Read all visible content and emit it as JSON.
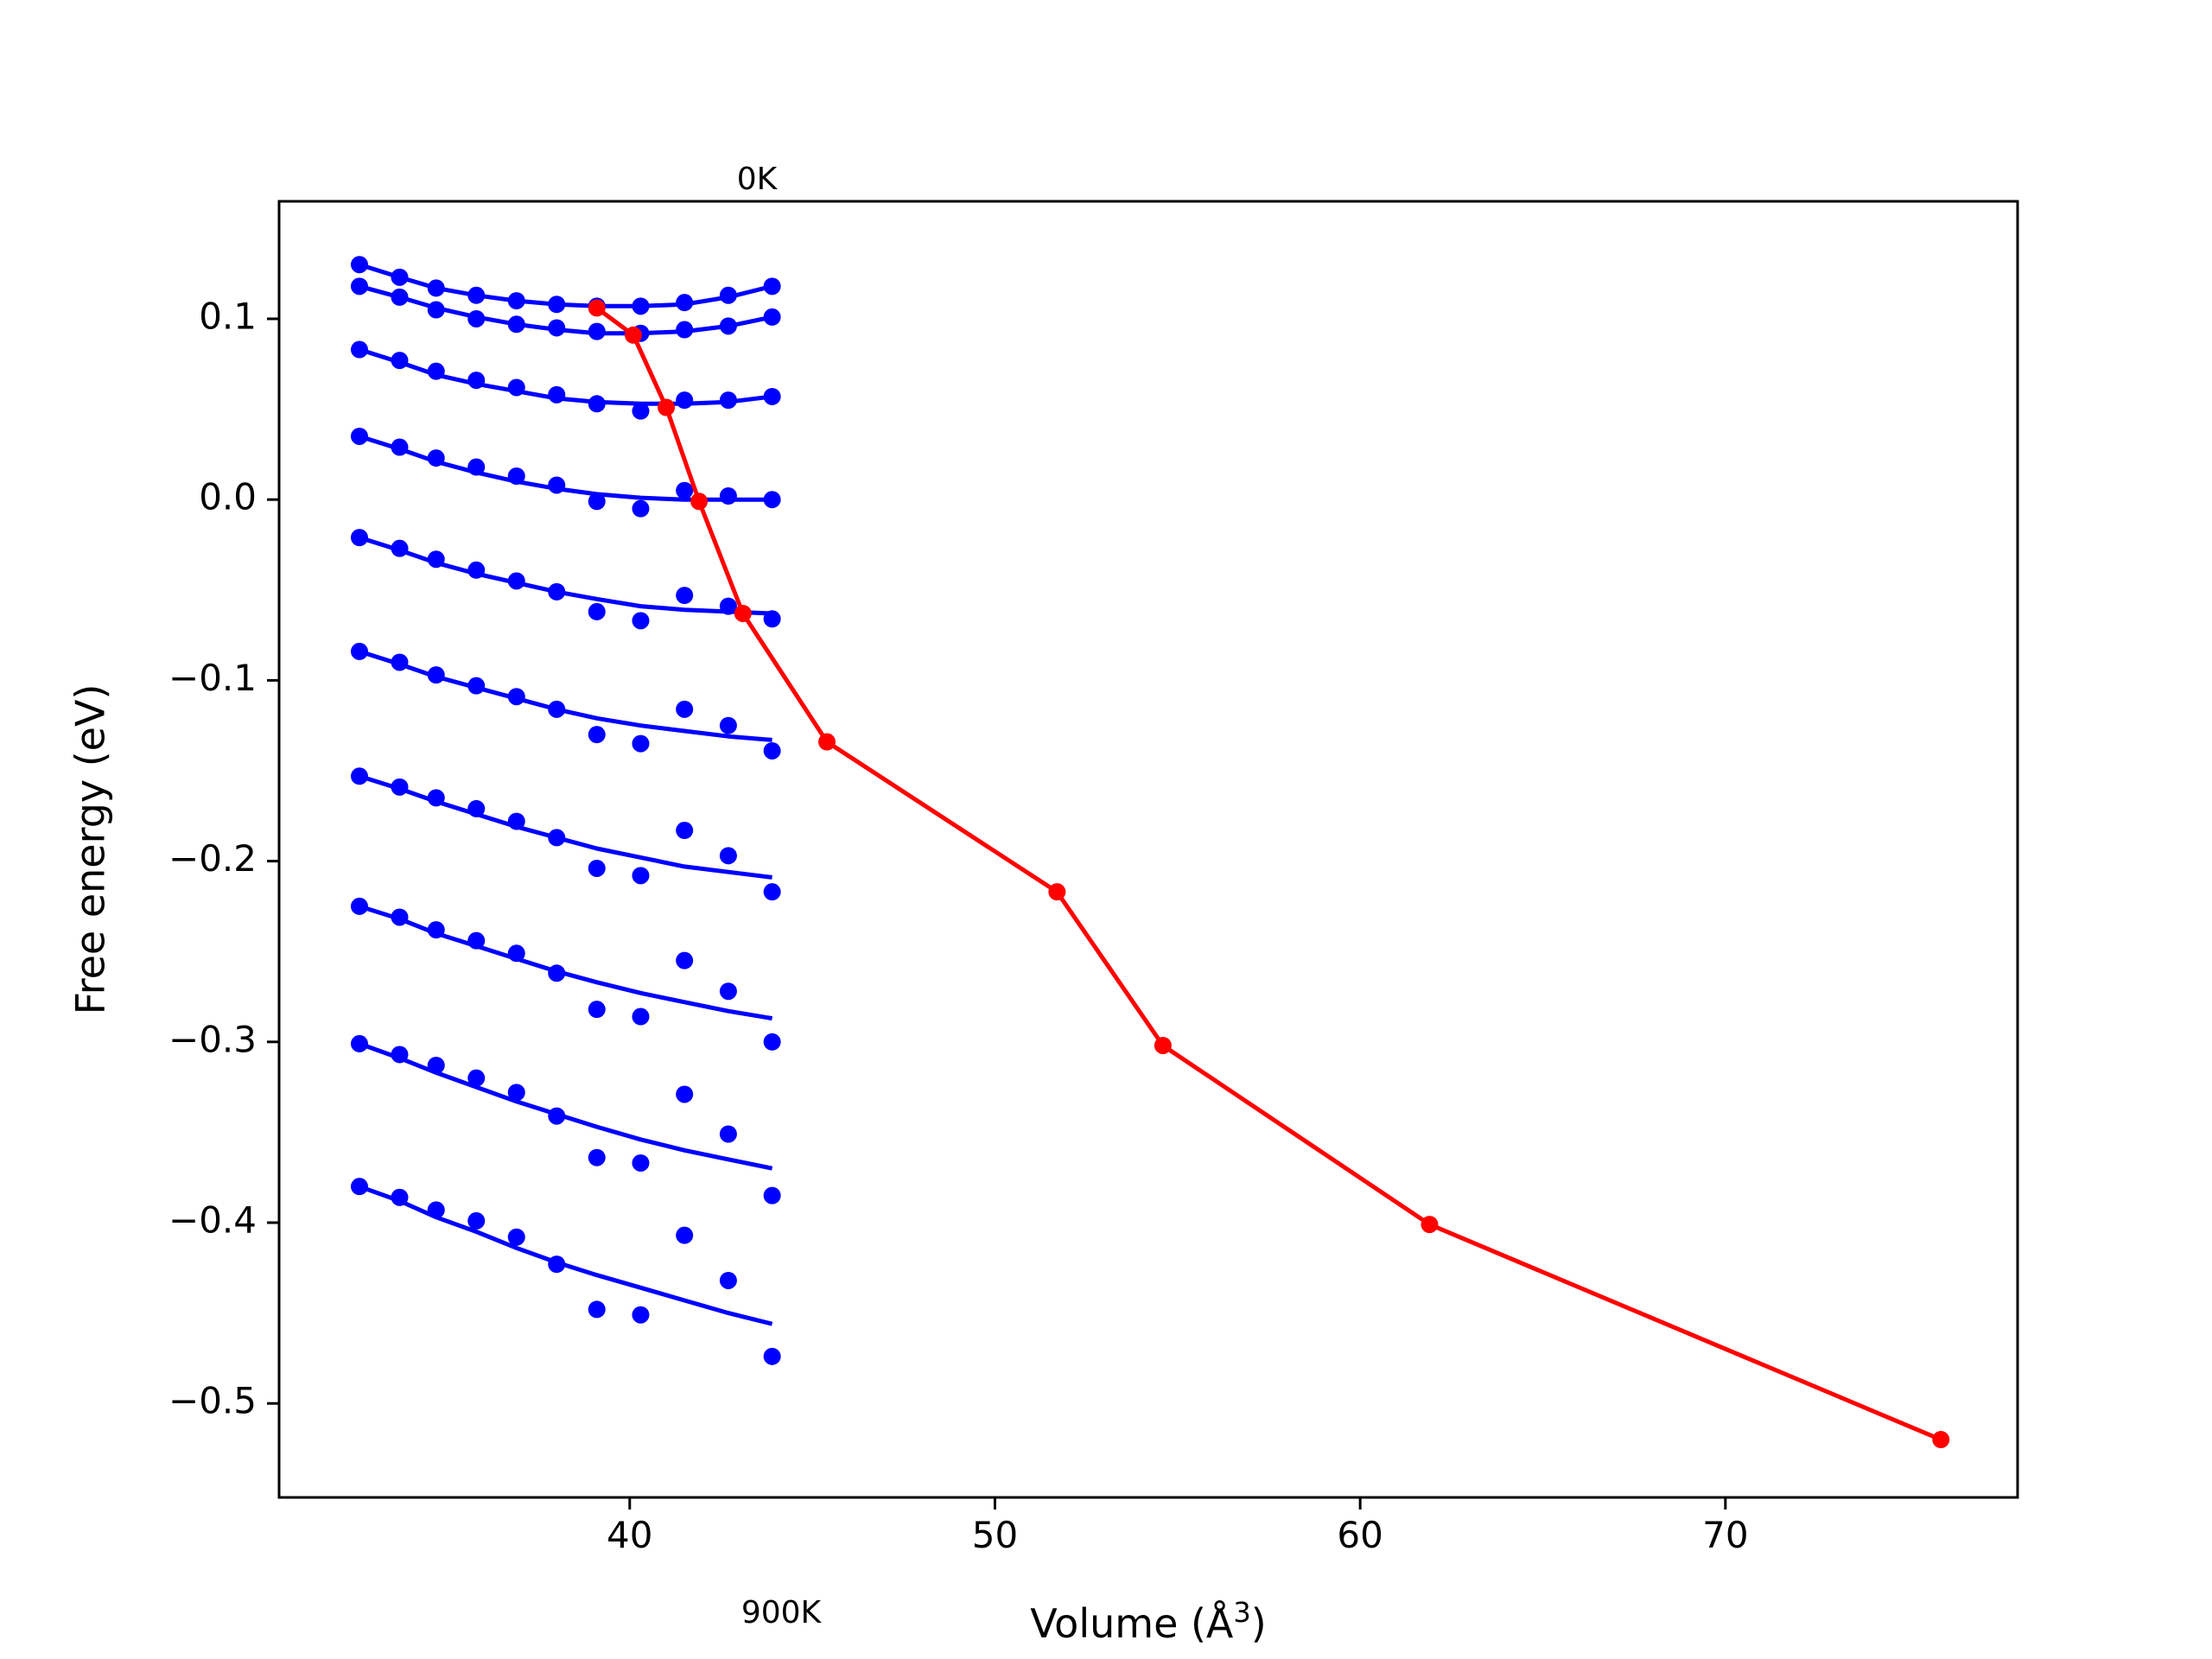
{
  "chart_data": {
    "type": "scatter",
    "title": "",
    "xlabel": "Volume (Å",
    "xlabel_sup": "3",
    "xlabel_close": ")",
    "ylabel": "Free energy (eV)",
    "xlim": [
      30.4,
      78.0
    ],
    "ylim": [
      -0.552,
      0.165
    ],
    "x_ticks": [
      40,
      50,
      60,
      70
    ],
    "y_ticks": [
      0.1,
      0.0,
      -0.1,
      -0.2,
      -0.3,
      -0.4,
      -0.5
    ],
    "y_tick_labels": [
      "0.1",
      "0.0",
      "−0.1",
      "−0.2",
      "−0.3",
      "−0.4",
      "−0.5"
    ],
    "annotations": [
      {
        "text": "0K",
        "x": 43.4,
        "y": 0.175
      },
      {
        "text": "900K",
        "x": 43.4,
        "y": -0.61
      }
    ],
    "colors": {
      "isotherm": "#0000ff",
      "minimum_path": "#ff0000"
    },
    "grid": false,
    "legend": "none",
    "volumes": [
      32.6,
      33.7,
      34.7,
      35.8,
      36.9,
      38.0,
      39.1,
      40.3,
      41.5,
      42.7,
      43.9
    ],
    "isotherms": [
      {
        "points": [
          0.13,
          0.123,
          0.117,
          0.113,
          0.11,
          0.108,
          0.107,
          0.107,
          0.109,
          0.113,
          0.118
        ],
        "fit": [
          0.13,
          0.123,
          0.117,
          0.113,
          0.11,
          0.108,
          0.107,
          0.107,
          0.108,
          0.112,
          0.118
        ]
      },
      {
        "points": [
          0.118,
          0.112,
          0.105,
          0.1,
          0.097,
          0.095,
          0.093,
          0.092,
          0.094,
          0.096,
          0.101
        ],
        "fit": [
          0.118,
          0.112,
          0.106,
          0.101,
          0.097,
          0.094,
          0.092,
          0.092,
          0.093,
          0.096,
          0.101
        ]
      },
      {
        "points": [
          0.083,
          0.077,
          0.071,
          0.066,
          0.062,
          0.058,
          0.053,
          0.049,
          0.055,
          0.055,
          0.057
        ],
        "fit": [
          0.083,
          0.076,
          0.069,
          0.064,
          0.06,
          0.056,
          0.054,
          0.053,
          0.053,
          0.054,
          0.057
        ]
      },
      {
        "points": [
          0.035,
          0.029,
          0.023,
          0.018,
          0.013,
          0.008,
          -0.001,
          -0.005,
          0.005,
          0.002,
          0.0
        ],
        "fit": [
          0.035,
          0.028,
          0.021,
          0.015,
          0.01,
          0.006,
          0.003,
          0.001,
          0.0,
          0.0,
          0.0
        ]
      },
      {
        "points": [
          -0.021,
          -0.027,
          -0.033,
          -0.039,
          -0.045,
          -0.051,
          -0.062,
          -0.067,
          -0.053,
          -0.059,
          -0.066
        ],
        "fit": [
          -0.021,
          -0.028,
          -0.035,
          -0.041,
          -0.046,
          -0.051,
          -0.055,
          -0.059,
          -0.061,
          -0.062,
          -0.063
        ]
      },
      {
        "points": [
          -0.084,
          -0.09,
          -0.097,
          -0.103,
          -0.109,
          -0.116,
          -0.13,
          -0.135,
          -0.116,
          -0.125,
          -0.139
        ],
        "fit": [
          -0.084,
          -0.091,
          -0.098,
          -0.104,
          -0.11,
          -0.116,
          -0.121,
          -0.125,
          -0.128,
          -0.131,
          -0.133
        ]
      },
      {
        "points": [
          -0.153,
          -0.159,
          -0.165,
          -0.171,
          -0.178,
          -0.187,
          -0.204,
          -0.208,
          -0.183,
          -0.197,
          -0.217
        ],
        "fit": [
          -0.153,
          -0.16,
          -0.167,
          -0.174,
          -0.181,
          -0.187,
          -0.193,
          -0.198,
          -0.203,
          -0.206,
          -0.209
        ]
      },
      {
        "points": [
          -0.225,
          -0.231,
          -0.238,
          -0.244,
          -0.251,
          -0.262,
          -0.282,
          -0.286,
          -0.255,
          -0.272,
          -0.3
        ],
        "fit": [
          -0.225,
          -0.232,
          -0.24,
          -0.247,
          -0.254,
          -0.261,
          -0.267,
          -0.273,
          -0.278,
          -0.283,
          -0.287
        ]
      },
      {
        "points": [
          -0.301,
          -0.307,
          -0.313,
          -0.32,
          -0.328,
          -0.341,
          -0.364,
          -0.367,
          -0.329,
          -0.351,
          -0.385
        ],
        "fit": [
          -0.301,
          -0.309,
          -0.317,
          -0.325,
          -0.333,
          -0.34,
          -0.347,
          -0.354,
          -0.36,
          -0.365,
          -0.37
        ]
      },
      {
        "points": [
          -0.38,
          -0.386,
          -0.393,
          -0.399,
          -0.408,
          -0.423,
          -0.448,
          -0.451,
          -0.407,
          -0.432,
          -0.474
        ],
        "fit": [
          -0.38,
          -0.388,
          -0.397,
          -0.405,
          -0.414,
          -0.422,
          -0.429,
          -0.436,
          -0.443,
          -0.45,
          -0.456
        ]
      }
    ],
    "minimum_path": {
      "x": [
        39.1,
        40.1,
        41.0,
        41.9,
        43.1,
        45.4,
        51.7,
        54.6,
        61.9,
        75.9
      ],
      "y": [
        0.106,
        0.091,
        0.051,
        -0.001,
        -0.063,
        -0.134,
        -0.217,
        -0.302,
        -0.401,
        -0.52
      ]
    }
  }
}
